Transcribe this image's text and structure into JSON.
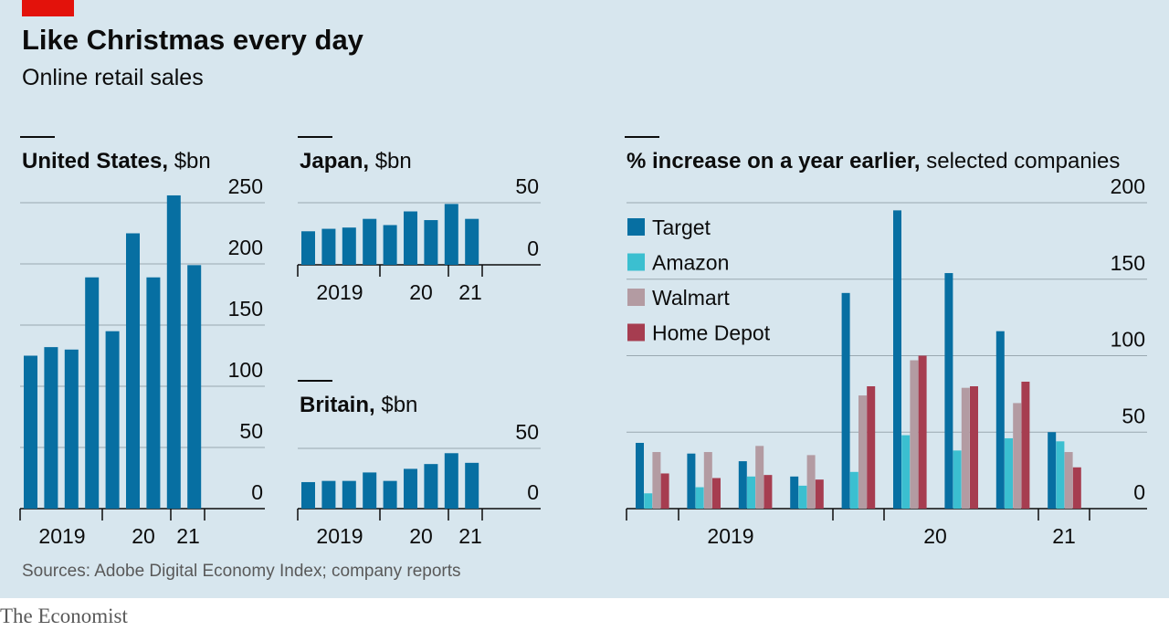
{
  "header": {
    "title": "Like Christmas every day",
    "subtitle": "Online retail sales"
  },
  "footer": {
    "source": "Sources: Adobe Digital Economy Index; company reports",
    "brand": "The Economist"
  },
  "colors": {
    "background": "#d7e6ee",
    "accent_red": "#e3120b",
    "bar_blue": "#076fa2",
    "target": "#076fa2",
    "amazon": "#3bbfd0",
    "walmart": "#b39ba2",
    "home_depot": "#a63d50",
    "grid": "#9aa8b0"
  },
  "chart_data": [
    {
      "id": "us",
      "type": "bar",
      "title": "United States,",
      "unit": "$bn",
      "ylim": [
        0,
        250
      ],
      "yticks": [
        0,
        50,
        100,
        150,
        200,
        250
      ],
      "x_labels": [
        "2019",
        "20",
        "21"
      ],
      "values": [
        125,
        132,
        130,
        189,
        145,
        225,
        189,
        256,
        199
      ],
      "grid": true
    },
    {
      "id": "japan",
      "type": "bar",
      "title": "Japan,",
      "unit": "$bn",
      "ylim": [
        0,
        50
      ],
      "yticks": [
        0,
        50
      ],
      "x_labels": [
        "2019",
        "20",
        "21"
      ],
      "values": [
        27,
        29,
        30,
        37,
        32,
        43,
        36,
        49,
        37
      ],
      "grid": true
    },
    {
      "id": "britain",
      "type": "bar",
      "title": "Britain,",
      "unit": "$bn",
      "ylim": [
        0,
        50
      ],
      "yticks": [
        0,
        50
      ],
      "x_labels": [
        "2019",
        "20",
        "21"
      ],
      "values": [
        22,
        23,
        23,
        30,
        23,
        33,
        37,
        46,
        38
      ],
      "grid": true
    },
    {
      "id": "companies",
      "type": "bar",
      "title": "% increase on a year earlier,",
      "unit": "selected companies",
      "ylim": [
        0,
        200
      ],
      "yticks": [
        0,
        50,
        100,
        150,
        200
      ],
      "x_labels": [
        "2019",
        "20",
        "21"
      ],
      "legend": [
        "Target",
        "Amazon",
        "Walmart",
        "Home Depot"
      ],
      "series": [
        {
          "name": "Target",
          "values": [
            43,
            36,
            31,
            21,
            141,
            195,
            154,
            116,
            50
          ]
        },
        {
          "name": "Amazon",
          "values": [
            10,
            14,
            21,
            15,
            24,
            48,
            38,
            46,
            44
          ]
        },
        {
          "name": "Walmart",
          "values": [
            37,
            37,
            41,
            35,
            74,
            97,
            79,
            69,
            37
          ]
        },
        {
          "name": "Home Depot",
          "values": [
            23,
            20,
            22,
            19,
            80,
            100,
            80,
            83,
            27
          ]
        }
      ],
      "grid": true
    }
  ]
}
